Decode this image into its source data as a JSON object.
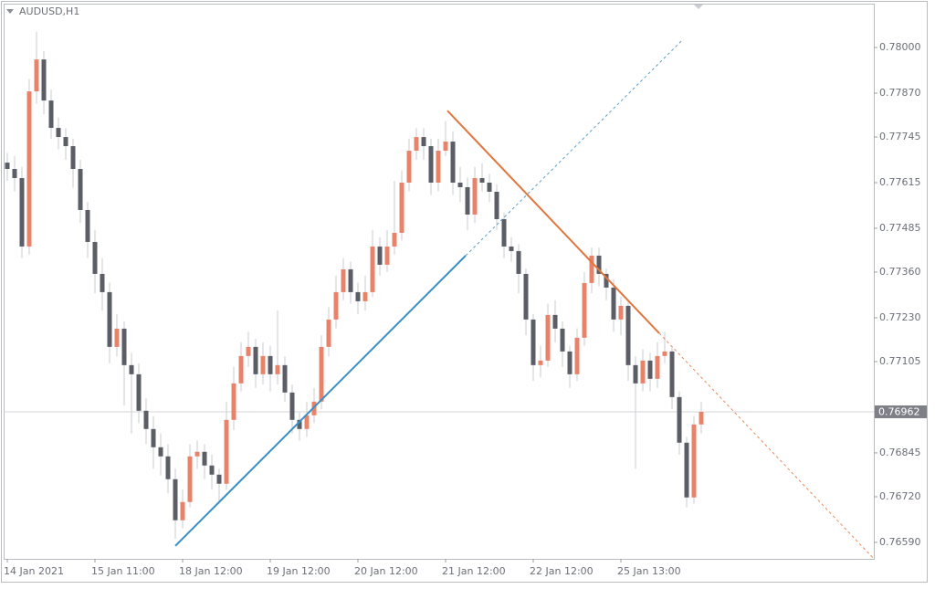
{
  "chart_data": {
    "type": "candlestick",
    "title": "AUDUSD,H1",
    "up_color": "#e8836b",
    "down_color": "#5b5e66",
    "categories": [
      "14 Jan 2021",
      null,
      null,
      null,
      null,
      null,
      null,
      null,
      null,
      null,
      null,
      null,
      "15 Jan 11:00",
      null,
      null,
      null,
      null,
      null,
      null,
      null,
      null,
      null,
      null,
      null,
      "18 Jan 12:00",
      null,
      null,
      null,
      null,
      null,
      null,
      null,
      null,
      null,
      null,
      null,
      "19 Jan 12:00",
      null,
      null,
      null,
      null,
      null,
      null,
      null,
      null,
      null,
      null,
      null,
      "20 Jan 12:00",
      null,
      null,
      null,
      null,
      null,
      null,
      null,
      null,
      null,
      null,
      null,
      "21 Jan 12:00",
      null,
      null,
      null,
      null,
      null,
      null,
      null,
      null,
      null,
      null,
      null,
      "22 Jan 12:00",
      null,
      null,
      null,
      null,
      null,
      null,
      null,
      null,
      null,
      null,
      null,
      "25 Jan 13:00",
      null,
      null,
      null,
      null,
      null,
      null,
      null,
      null,
      null,
      null,
      null
    ],
    "open": [
      0.77672,
      0.77654,
      0.77628,
      0.77433,
      0.77875,
      0.77966,
      0.77849,
      0.77771,
      0.77745,
      0.77719,
      0.77654,
      0.77537,
      0.77446,
      0.77355,
      0.77303,
      0.77147,
      0.77199,
      0.77095,
      0.77069,
      0.76965,
      0.76913,
      0.76861,
      0.76835,
      0.7677,
      0.76653,
      0.76705,
      0.76835,
      0.76848,
      0.76809,
      0.76783,
      0.76757,
      0.76939,
      0.77043,
      0.77121,
      0.77147,
      0.77069,
      0.77121,
      0.77069,
      0.77095,
      0.77017,
      0.76939,
      0.76913,
      0.76952,
      0.76991,
      0.77147,
      0.77225,
      0.77303,
      0.77368,
      0.77303,
      0.77277,
      0.77303,
      0.77433,
      0.77381,
      0.77433,
      0.77472,
      0.77615,
      0.77706,
      0.77745,
      0.77719,
      0.77615,
      0.77706,
      0.77732,
      0.77615,
      0.77602,
      0.77524,
      0.77628,
      0.77615,
      0.77589,
      0.77511,
      0.77433,
      0.7742,
      0.77355,
      0.77225,
      0.77095,
      0.77108,
      0.77238,
      0.77199,
      0.77134,
      0.77069,
      0.77173,
      0.77329,
      0.77407,
      0.77355,
      0.77316,
      0.77225,
      0.77264,
      0.77095,
      0.77043,
      0.77108,
      0.77056,
      0.77121,
      0.77134,
      0.77004,
      0.76874,
      0.76718,
      0.76926
    ],
    "high": [
      0.777,
      0.7769,
      0.7766,
      0.7791,
      0.78044,
      0.7799,
      0.7788,
      0.778,
      0.7777,
      0.7774,
      0.7768,
      0.7756,
      0.7748,
      0.774,
      0.7733,
      0.7724,
      0.7722,
      0.7713,
      0.771,
      0.77,
      0.7695,
      0.769,
      0.7687,
      0.768,
      0.7674,
      0.7687,
      0.7688,
      0.7687,
      0.7684,
      0.768,
      0.7699,
      0.7709,
      0.7716,
      0.7719,
      0.7717,
      0.7716,
      0.7715,
      0.7725,
      0.7712,
      0.7704,
      0.7696,
      0.7699,
      0.7703,
      0.7718,
      0.7726,
      0.7735,
      0.774,
      0.7739,
      0.7733,
      0.7735,
      0.7748,
      0.7746,
      0.7748,
      0.7762,
      0.7765,
      0.7774,
      0.7777,
      0.7777,
      0.7774,
      0.7774,
      0.7779,
      0.7776,
      0.7766,
      0.7763,
      0.7766,
      0.7767,
      0.7764,
      0.7761,
      0.7753,
      0.7746,
      0.7744,
      0.7737,
      0.7724,
      0.7715,
      0.7727,
      0.7728,
      0.7722,
      0.7715,
      0.772,
      0.7736,
      0.7743,
      0.7743,
      0.7737,
      0.7734,
      0.7729,
      0.7728,
      0.7712,
      0.7714,
      0.7713,
      0.7716,
      0.7719,
      0.7715,
      0.7702,
      0.7689,
      0.7695,
      0.7699
    ],
    "low": [
      0.7762,
      0.7759,
      0.774,
      0.7741,
      0.7784,
      0.7781,
      0.7774,
      0.7771,
      0.7768,
      0.776,
      0.775,
      0.774,
      0.773,
      0.7725,
      0.771,
      0.7712,
      0.7698,
      0.769,
      0.7693,
      0.7687,
      0.768,
      0.7678,
      0.7673,
      0.766,
      0.7663,
      0.7669,
      0.768,
      0.7677,
      0.7674,
      0.767,
      0.7674,
      0.7691,
      0.7702,
      0.7709,
      0.7703,
      0.7704,
      0.7702,
      0.7704,
      0.7699,
      0.769,
      0.7688,
      0.7689,
      0.7693,
      0.7697,
      0.7712,
      0.772,
      0.7728,
      0.7727,
      0.7724,
      0.7725,
      0.7729,
      0.7735,
      0.7736,
      0.7741,
      0.7745,
      0.7759,
      0.7768,
      0.7768,
      0.7758,
      0.7759,
      0.7769,
      0.7758,
      0.7756,
      0.7748,
      0.775,
      0.7759,
      0.7756,
      0.7748,
      0.774,
      0.7739,
      0.773,
      0.7718,
      0.7705,
      0.7706,
      0.7709,
      0.7716,
      0.7709,
      0.7703,
      0.7705,
      0.7715,
      0.773,
      0.7732,
      0.7728,
      0.7719,
      0.7718,
      0.7705,
      0.768,
      0.7702,
      0.7702,
      0.7703,
      0.771,
      0.7697,
      0.7684,
      0.7669,
      0.767,
      0.769
    ],
    "close": [
      0.77654,
      0.77628,
      0.77433,
      0.77875,
      0.77966,
      0.77849,
      0.77771,
      0.77745,
      0.77719,
      0.77654,
      0.77537,
      0.77446,
      0.77355,
      0.77303,
      0.77147,
      0.77199,
      0.77095,
      0.77069,
      0.76965,
      0.76913,
      0.76861,
      0.76835,
      0.7677,
      0.76653,
      0.76705,
      0.76835,
      0.76848,
      0.76809,
      0.76783,
      0.76757,
      0.76939,
      0.77043,
      0.77121,
      0.77147,
      0.77069,
      0.77121,
      0.77069,
      0.77095,
      0.77017,
      0.76939,
      0.76913,
      0.76952,
      0.76991,
      0.77147,
      0.77225,
      0.77303,
      0.77368,
      0.77303,
      0.77277,
      0.77303,
      0.77433,
      0.77381,
      0.77433,
      0.77472,
      0.77615,
      0.77706,
      0.77745,
      0.77719,
      0.77615,
      0.77706,
      0.77732,
      0.77615,
      0.77602,
      0.77524,
      0.77628,
      0.77615,
      0.77589,
      0.77511,
      0.77433,
      0.7742,
      0.77355,
      0.77225,
      0.77095,
      0.77108,
      0.77238,
      0.77199,
      0.77134,
      0.77069,
      0.77173,
      0.77329,
      0.77407,
      0.77355,
      0.77316,
      0.77225,
      0.77264,
      0.77095,
      0.77043,
      0.77108,
      0.77056,
      0.77121,
      0.77134,
      0.77004,
      0.76874,
      0.76718,
      0.76926,
      0.76962
    ],
    "ylim": [
      0.76543,
      0.78125
    ],
    "yticks": [
      {
        "value": 0.78,
        "label": "0.78000"
      },
      {
        "value": 0.7787,
        "label": "0.77870"
      },
      0.77745,
      0.77615,
      0.77485,
      {
        "value": 0.7736,
        "label": "0.77360"
      },
      {
        "value": 0.7723,
        "label": "0.77230"
      },
      0.77105,
      0.76845,
      {
        "value": 0.7672,
        "label": "0.76720"
      },
      {
        "value": 0.7659,
        "label": "0.76590"
      }
    ],
    "current_price": 0.76962,
    "trendlines": [
      {
        "color": "#3a8fc4",
        "points": [
          [
            23,
            0.7658
          ],
          [
            62.75,
            0.77407
          ],
          [
            92.5,
            0.78023
          ]
        ]
      },
      {
        "color": "#e0773e",
        "points": [
          [
            60.25,
            0.7782
          ],
          [
            89.25,
            0.77186
          ],
          [
            118.6,
            0.76544
          ]
        ]
      }
    ]
  }
}
